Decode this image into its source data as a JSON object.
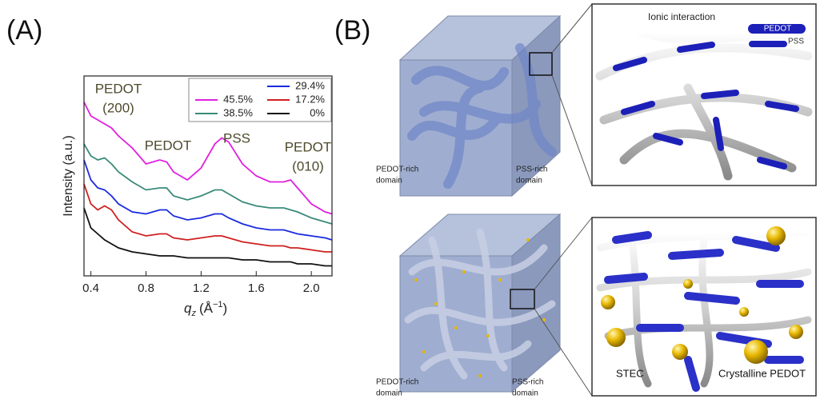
{
  "panel_a_label": "(A)",
  "chart_data": {
    "type": "line",
    "x_label": {
      "symbol": "q",
      "subscript": "z",
      "unit": "(Å",
      "exponent": "−1",
      "close": ")"
    },
    "y_label": "Intensity (a.u.)",
    "annotations": [
      {
        "lines": [
          "PEDOT",
          "(200)"
        ]
      },
      {
        "lines": [
          "PEDOT"
        ]
      },
      {
        "lines": [
          "PSS"
        ]
      },
      {
        "lines": [
          "PEDOT",
          "(010)"
        ]
      }
    ],
    "x": [
      0.35,
      0.4,
      0.45,
      0.5,
      0.55,
      0.6,
      0.7,
      0.8,
      0.9,
      0.95,
      1.0,
      1.1,
      1.2,
      1.3,
      1.35,
      1.4,
      1.5,
      1.6,
      1.7,
      1.8,
      1.85,
      1.9,
      2.0,
      2.1,
      2.15
    ],
    "series": [
      {
        "name": "45.5%",
        "color": "#e020e0",
        "values": [
          8.7,
          8.0,
          7.8,
          7.6,
          7.4,
          7.0,
          6.4,
          5.6,
          5.8,
          5.7,
          5.2,
          4.8,
          5.4,
          6.6,
          6.9,
          6.7,
          5.6,
          5.0,
          4.7,
          4.7,
          4.8,
          4.4,
          3.6,
          3.2,
          3.1
        ]
      },
      {
        "name": "38.5%",
        "color": "#3a8a7a",
        "values": [
          6.6,
          6.0,
          5.8,
          5.9,
          5.6,
          5.2,
          4.7,
          4.3,
          4.4,
          4.4,
          4.0,
          3.8,
          4.0,
          4.3,
          4.3,
          4.1,
          3.7,
          3.5,
          3.4,
          3.4,
          3.3,
          3.2,
          2.9,
          2.7,
          2.6
        ]
      },
      {
        "name": "29.4%",
        "color": "#1a2adf",
        "values": [
          5.8,
          4.8,
          4.4,
          4.3,
          4.0,
          3.6,
          3.2,
          3.1,
          3.3,
          3.3,
          3.0,
          2.8,
          2.9,
          3.1,
          3.1,
          2.9,
          2.6,
          2.4,
          2.3,
          2.3,
          2.2,
          2.1,
          2.0,
          1.9,
          1.8
        ]
      },
      {
        "name": "17.2%",
        "color": "#d02020",
        "values": [
          4.6,
          3.6,
          3.3,
          3.5,
          3.3,
          2.8,
          2.2,
          2.0,
          2.1,
          2.1,
          1.9,
          1.8,
          1.9,
          2.0,
          2.0,
          1.9,
          1.7,
          1.6,
          1.5,
          1.5,
          1.4,
          1.4,
          1.3,
          1.2,
          1.2
        ]
      },
      {
        "name": "0%",
        "color": "#111111",
        "values": [
          3.4,
          2.4,
          2.1,
          1.8,
          1.6,
          1.4,
          1.2,
          1.1,
          1.0,
          1.0,
          1.0,
          0.9,
          0.9,
          0.9,
          0.9,
          0.9,
          0.8,
          0.8,
          0.7,
          0.7,
          0.7,
          0.6,
          0.6,
          0.5,
          0.5
        ]
      }
    ],
    "xlim": [
      0.35,
      2.15
    ],
    "xticks": [
      0.4,
      0.8,
      1.2,
      1.6,
      {
        "value": 2,
        "label": "2.0"
      }
    ],
    "ylim": [
      0,
      10
    ]
  },
  "panel_b": {
    "label": "(B)",
    "top": {
      "pedot_rich": [
        "PEDOT-rich",
        "domain"
      ],
      "pss_rich": [
        "PSS-rich",
        "domain"
      ],
      "ionic": "Ionic interaction",
      "pedot": "PEDOT",
      "pss": "PSS"
    },
    "bottom": {
      "pedot_rich": [
        "PEDOT-rich",
        "domain"
      ],
      "pss_rich": [
        "PSS-rich",
        "domain"
      ],
      "stec": "STEC",
      "crystalline": "Crystalline PEDOT"
    }
  }
}
